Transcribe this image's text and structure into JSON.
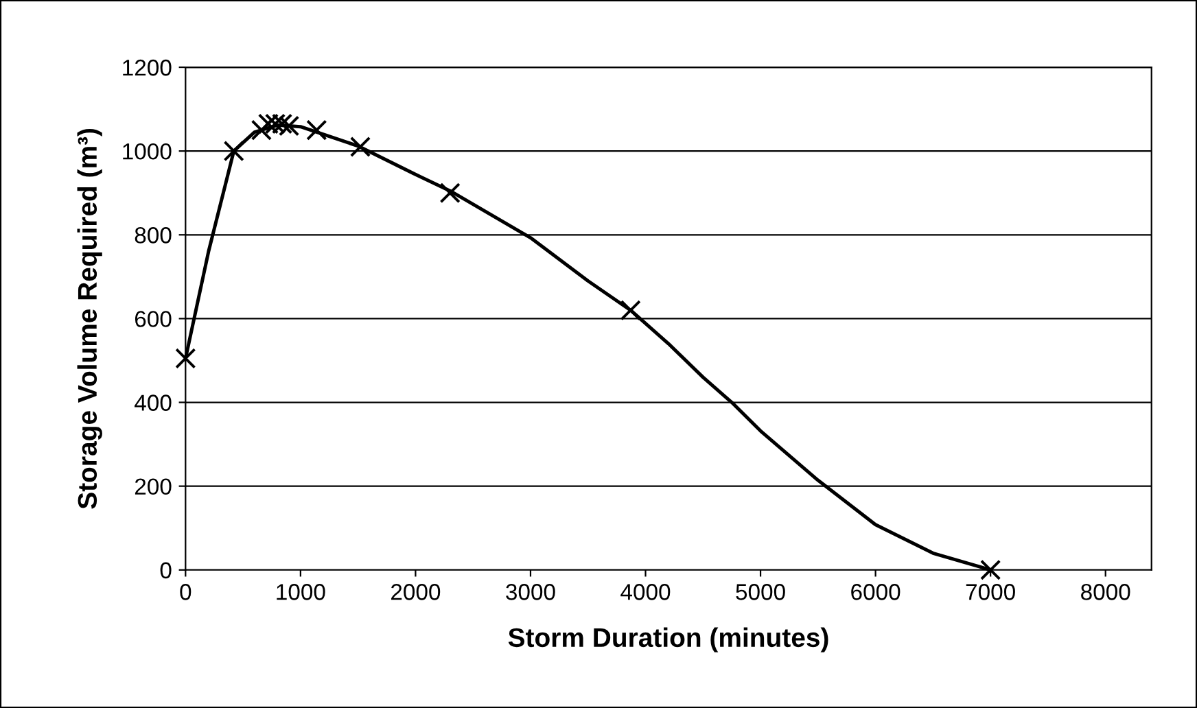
{
  "chart_data": {
    "type": "line",
    "xlabel": "Storm Duration (minutes)",
    "ylabel": "Storage Volume Required (m³)",
    "xlim": [
      0,
      8400
    ],
    "xticks": [
      0,
      1000,
      2000,
      3000,
      4000,
      5000,
      6000,
      7000,
      8000
    ],
    "ylim": [
      0,
      1200
    ],
    "yticks": [
      0,
      200,
      400,
      600,
      800,
      1000,
      1200
    ],
    "grid": "y",
    "legend": false,
    "series": [
      {
        "color": "#000000",
        "marker": "none",
        "line_style": "solid",
        "x": [
          0,
          200,
          420,
          600,
          800,
          1000,
          1500,
          2000,
          2300,
          3000,
          3500,
          3870,
          4200,
          4500,
          4750,
          5000,
          5500,
          6000,
          6500,
          7000
        ],
        "values": [
          505,
          760,
          1000,
          1045,
          1062,
          1058,
          1012,
          944,
          905,
          793,
          690,
          620,
          540,
          460,
          400,
          332,
          214,
          108,
          40,
          0
        ]
      },
      {
        "type": "scatter",
        "color": "#000000",
        "marker": "cross",
        "x": [
          0,
          420,
          660,
          720,
          780,
          840,
          900,
          1140,
          1520,
          2300,
          3870,
          7000
        ],
        "values": [
          505,
          1000,
          1050,
          1065,
          1065,
          1065,
          1060,
          1050,
          1010,
          900,
          620,
          0
        ]
      }
    ]
  }
}
